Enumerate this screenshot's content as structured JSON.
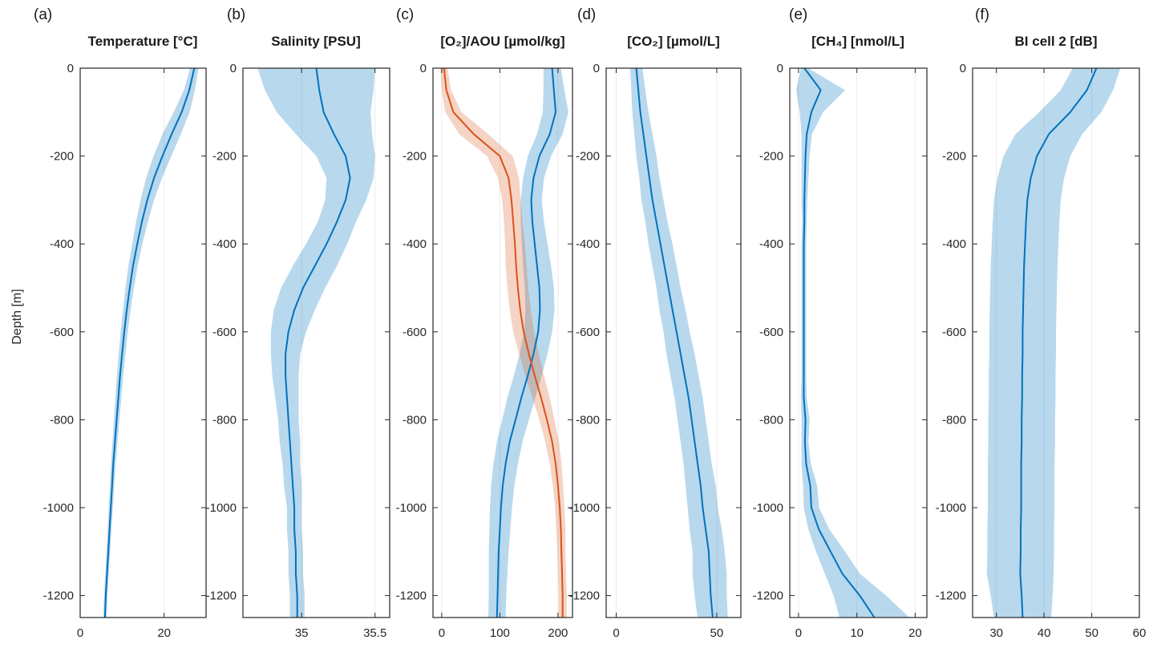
{
  "figure": {
    "ylabel": "Depth [m]",
    "background_color": "#ffffff",
    "axis_color": "#262626",
    "accent_blue": "#0072BD",
    "accent_orange": "#D95319",
    "grid": "vertical-gridlines-at-xticks",
    "legend": "none"
  },
  "chart_data": [
    {
      "type": "line",
      "letter": "(a)",
      "title": "Temperature [°C]",
      "xlabel": "",
      "ylabel": "Depth [m]",
      "xlim": [
        0,
        30
      ],
      "xticks": [
        "0",
        "20"
      ],
      "ylim": [
        -1250,
        0
      ],
      "yticks": [
        "0",
        "-200",
        "-400",
        "-600",
        "-800",
        "-1000",
        "-1200"
      ],
      "depth_m": [
        0,
        -50,
        -100,
        -150,
        -200,
        -250,
        -300,
        -350,
        -400,
        -450,
        -500,
        -550,
        -600,
        -650,
        -700,
        -750,
        -800,
        -850,
        -900,
        -950,
        -1000,
        -1050,
        -1100,
        -1150,
        -1200,
        -1250
      ],
      "series": [
        {
          "name": "Temperature mean",
          "band": "mean ± 1 sd",
          "color": "#0072BD",
          "band_opacity": 0.28,
          "values": [
            27.2,
            26.0,
            24.2,
            21.8,
            19.6,
            17.6,
            16.0,
            14.7,
            13.6,
            12.6,
            11.8,
            11.1,
            10.5,
            10.0,
            9.5,
            9.1,
            8.7,
            8.3,
            7.9,
            7.6,
            7.3,
            7.0,
            6.7,
            6.4,
            6.1,
            5.9
          ],
          "std": [
            1.0,
            1.3,
            1.9,
            2.2,
            2.1,
            1.9,
            1.6,
            1.4,
            1.2,
            1.1,
            1.0,
            0.9,
            0.85,
            0.8,
            0.75,
            0.7,
            0.65,
            0.6,
            0.55,
            0.5,
            0.5,
            0.45,
            0.45,
            0.4,
            0.4,
            0.4
          ]
        }
      ]
    },
    {
      "type": "line",
      "letter": "(b)",
      "title": "Salinity [PSU]",
      "xlabel": "",
      "ylabel": "Depth [m]",
      "xlim": [
        34.6,
        35.6
      ],
      "xticks": [
        "35",
        "35.5"
      ],
      "ylim": [
        -1250,
        0
      ],
      "yticks": [
        "0",
        "-200",
        "-400",
        "-600",
        "-800",
        "-1000",
        "-1200"
      ],
      "depth_m": [
        0,
        -50,
        -100,
        -150,
        -200,
        -250,
        -300,
        -350,
        -400,
        -450,
        -500,
        -550,
        -600,
        -650,
        -700,
        -750,
        -800,
        -850,
        -900,
        -950,
        -1000,
        -1050,
        -1100,
        -1150,
        -1200,
        -1250
      ],
      "series": [
        {
          "name": "Salinity mean",
          "band": "mean ± 1 sd",
          "color": "#0072BD",
          "band_opacity": 0.28,
          "values": [
            35.1,
            35.12,
            35.15,
            35.22,
            35.3,
            35.33,
            35.3,
            35.24,
            35.17,
            35.09,
            35.01,
            34.95,
            34.91,
            34.89,
            34.89,
            34.9,
            34.91,
            34.92,
            34.93,
            34.94,
            34.95,
            34.95,
            34.96,
            34.96,
            34.97,
            34.97
          ],
          "std": [
            0.4,
            0.37,
            0.32,
            0.26,
            0.2,
            0.16,
            0.14,
            0.13,
            0.14,
            0.15,
            0.15,
            0.14,
            0.12,
            0.1,
            0.09,
            0.08,
            0.07,
            0.07,
            0.06,
            0.06,
            0.05,
            0.05,
            0.05,
            0.05,
            0.05,
            0.05
          ]
        }
      ]
    },
    {
      "type": "line",
      "letter": "(c)",
      "title": "[O₂]/AOU [µmol/kg]",
      "xlabel": "",
      "ylabel": "Depth [m]",
      "xlim": [
        -15,
        225
      ],
      "xticks": [
        "0",
        "100",
        "200"
      ],
      "ylim": [
        -1250,
        0
      ],
      "yticks": [
        "0",
        "-200",
        "-400",
        "-600",
        "-800",
        "-1000",
        "-1200"
      ],
      "depth_m": [
        0,
        -50,
        -100,
        -150,
        -200,
        -250,
        -300,
        -350,
        -400,
        -450,
        -500,
        -550,
        -600,
        -650,
        -700,
        -750,
        -800,
        -850,
        -900,
        -950,
        -1000,
        -1050,
        -1100,
        -1150,
        -1200,
        -1250
      ],
      "series": [
        {
          "name": "O₂",
          "band": "mean ± 1 sd",
          "color": "#0072BD",
          "band_opacity": 0.28,
          "values": [
            190,
            193,
            196,
            186,
            168,
            158,
            154,
            156,
            160,
            164,
            168,
            169,
            166,
            158,
            148,
            137,
            127,
            117,
            110,
            105,
            102,
            100,
            98,
            97,
            96,
            95
          ],
          "std": [
            15,
            18,
            22,
            22,
            20,
            18,
            18,
            20,
            22,
            24,
            25,
            25,
            24,
            24,
            24,
            24,
            23,
            22,
            21,
            20,
            19,
            18,
            17,
            16,
            15,
            15
          ]
        },
        {
          "name": "AOU",
          "band": "mean ± 1 sd",
          "color": "#D95319",
          "band_opacity": 0.25,
          "values": [
            4,
            8,
            20,
            55,
            100,
            115,
            120,
            123,
            126,
            128,
            131,
            135,
            141,
            150,
            160,
            171,
            181,
            190,
            196,
            200,
            203,
            205,
            206,
            207,
            208,
            208
          ],
          "std": [
            6,
            8,
            14,
            25,
            22,
            18,
            16,
            16,
            17,
            18,
            18,
            18,
            18,
            17,
            16,
            15,
            13,
            12,
            10,
            9,
            8,
            8,
            7,
            7,
            7,
            7
          ]
        }
      ]
    },
    {
      "type": "line",
      "letter": "(d)",
      "title": "[CO₂] [µmol/L]",
      "xlabel": "",
      "ylabel": "Depth [m]",
      "xlim": [
        -5,
        62
      ],
      "xticks": [
        "0",
        "50"
      ],
      "ylim": [
        -1250,
        0
      ],
      "yticks": [
        "0",
        "-200",
        "-400",
        "-600",
        "-800",
        "-1000",
        "-1200"
      ],
      "depth_m": [
        0,
        -50,
        -100,
        -150,
        -200,
        -250,
        -300,
        -350,
        -400,
        -450,
        -500,
        -550,
        -600,
        -650,
        -700,
        -750,
        -800,
        -850,
        -900,
        -950,
        -1000,
        -1050,
        -1100,
        -1150,
        -1200,
        -1250
      ],
      "series": [
        {
          "name": "CO₂",
          "band": "mean ± 1 sd",
          "color": "#0072BD",
          "band_opacity": 0.28,
          "values": [
            10,
            11,
            12,
            13.5,
            15,
            16.5,
            18,
            20,
            22,
            24,
            26,
            28,
            30,
            32,
            34,
            36,
            37.5,
            39,
            40.5,
            42,
            43,
            44.5,
            46,
            46.5,
            47,
            48
          ],
          "std": [
            3,
            3.5,
            4,
            4.5,
            5,
            5,
            5.5,
            5.5,
            6,
            6,
            6,
            6.5,
            6.5,
            7,
            7,
            7,
            7,
            7,
            7,
            7.5,
            7.5,
            8,
            8,
            8.5,
            8,
            7.5
          ]
        }
      ]
    },
    {
      "type": "line",
      "letter": "(e)",
      "title": "[CH₄] [nmol/L]",
      "xlabel": "",
      "ylabel": "Depth [m]",
      "xlim": [
        -1.5,
        22
      ],
      "xticks": [
        "0",
        "10",
        "20"
      ],
      "ylim": [
        -1250,
        0
      ],
      "yticks": [
        "0",
        "-200",
        "-400",
        "-600",
        "-800",
        "-1000",
        "-1200"
      ],
      "depth_m": [
        0,
        -50,
        -100,
        -150,
        -200,
        -250,
        -300,
        -350,
        -400,
        -450,
        -500,
        -550,
        -600,
        -650,
        -700,
        -750,
        -800,
        -850,
        -900,
        -950,
        -1000,
        -1050,
        -1100,
        -1150,
        -1200,
        -1250
      ],
      "series": [
        {
          "name": "CH₄",
          "band": "mean ± 1 sd",
          "color": "#0072BD",
          "band_opacity": 0.28,
          "values": [
            1.0,
            3.8,
            2.2,
            1.4,
            1.2,
            1.1,
            1.0,
            1.0,
            0.9,
            0.9,
            0.9,
            0.9,
            0.9,
            0.9,
            0.9,
            0.9,
            1.2,
            1.1,
            1.3,
            2.0,
            2.2,
            3.5,
            5.5,
            7.5,
            10.5,
            13.0
          ],
          "std": [
            0.6,
            4.2,
            2.0,
            0.9,
            0.7,
            0.6,
            0.5,
            0.4,
            0.4,
            0.4,
            0.4,
            0.4,
            0.4,
            0.4,
            0.4,
            0.5,
            0.7,
            0.6,
            0.8,
            1.2,
            1.3,
            1.8,
            2.5,
            3.0,
            4.5,
            6.0
          ]
        }
      ]
    },
    {
      "type": "line",
      "letter": "(f)",
      "title": "BI cell 2 [dB]",
      "xlabel": "",
      "ylabel": "Depth [m]",
      "xlim": [
        25,
        60
      ],
      "xticks": [
        "30",
        "40",
        "50",
        "60"
      ],
      "ylim": [
        -1250,
        0
      ],
      "yticks": [
        "0",
        "-200",
        "-400",
        "-600",
        "-800",
        "-1000",
        "-1200"
      ],
      "depth_m": [
        0,
        -50,
        -100,
        -150,
        -200,
        -250,
        -300,
        -350,
        -400,
        -450,
        -500,
        -550,
        -600,
        -650,
        -700,
        -750,
        -800,
        -850,
        -900,
        -950,
        -1000,
        -1050,
        -1100,
        -1150,
        -1200,
        -1250
      ],
      "series": [
        {
          "name": "BI cell 2",
          "band": "mean ± 1 sd",
          "color": "#0072BD",
          "band_opacity": 0.28,
          "values": [
            51,
            49,
            45.5,
            41,
            38.5,
            37.2,
            36.5,
            36.2,
            36.0,
            35.8,
            35.7,
            35.6,
            35.5,
            35.5,
            35.4,
            35.4,
            35.3,
            35.3,
            35.2,
            35.2,
            35.2,
            35.1,
            35.1,
            35.0,
            35.3,
            35.5
          ],
          "std": [
            5,
            5.5,
            6.5,
            7,
            7,
            7,
            7,
            7,
            7,
            7,
            7,
            7,
            7,
            7,
            7,
            7,
            7,
            7,
            7,
            7,
            7,
            7,
            7,
            7,
            6.5,
            6
          ]
        }
      ]
    }
  ]
}
